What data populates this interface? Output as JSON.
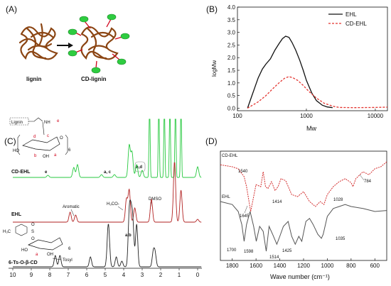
{
  "panels": {
    "a": {
      "label": "(A)",
      "left_caption": "lignin",
      "right_caption": "CD-lignin"
    },
    "b": {
      "label": "(B)"
    },
    "c": {
      "label": "(C)"
    },
    "d": {
      "label": "(D)"
    }
  },
  "colors": {
    "ehl": "#111111",
    "cd_ehl": "#e3342f",
    "nmr_cd": "#27c93f",
    "nmr_ehl": "#b22222",
    "nmr_ts": "#222222",
    "ftir_cd": "#d32f2f",
    "ftir_ehl": "#555555",
    "lignin": "#8b4513",
    "cd": "#2ecc40"
  },
  "chart_data": [
    {
      "type": "line",
      "panel": "B",
      "xlabel": "Mw",
      "ylabel": "logMw",
      "xscale": "log",
      "xlim": [
        100,
        15000
      ],
      "ylim": [
        -0.1,
        4.0
      ],
      "x_ticks": [
        "100",
        "1000",
        "10000"
      ],
      "y_ticks": [
        "0.0",
        "0.5",
        "1.0",
        "1.5",
        "2.0",
        "2.5",
        "3.0",
        "3.5",
        "4.0"
      ],
      "legend_position": "top-right",
      "series": [
        {
          "name": "EHL",
          "x": [
            140,
            160,
            180,
            200,
            230,
            260,
            300,
            350,
            400,
            450,
            500,
            560,
            620,
            700,
            800,
            900,
            1000,
            1200,
            1400,
            1700,
            2000,
            2400
          ],
          "y": [
            0.0,
            0.45,
            0.85,
            1.2,
            1.55,
            1.75,
            1.95,
            2.3,
            2.55,
            2.75,
            2.85,
            2.8,
            2.6,
            2.3,
            1.9,
            1.5,
            1.1,
            0.6,
            0.3,
            0.12,
            0.05,
            0.02
          ]
        },
        {
          "name": "CD-EHL",
          "x": [
            140,
            200,
            260,
            320,
            400,
            480,
            560,
            640,
            750,
            900,
            1100,
            1400,
            1800,
            2400,
            3000,
            5000,
            10000,
            15000
          ],
          "y": [
            0.0,
            0.25,
            0.5,
            0.75,
            1.0,
            1.18,
            1.25,
            1.2,
            1.1,
            0.9,
            0.65,
            0.4,
            0.2,
            0.08,
            0.03,
            0.02,
            0.03,
            0.04
          ]
        }
      ]
    },
    {
      "type": "line",
      "panel": "C",
      "x_reversed": true,
      "xlim": [
        10,
        0
      ],
      "x_ticks": [
        "10",
        "9",
        "8",
        "7",
        "6",
        "5",
        "4",
        "3",
        "2",
        "1",
        "0"
      ],
      "series": [
        {
          "name": "CD-EHL",
          "baseline": 0,
          "peaks": [
            [
              8.1,
              3
            ],
            [
              6.7,
              14
            ],
            [
              6.5,
              18
            ],
            [
              5.2,
              4
            ],
            [
              4.5,
              4
            ],
            [
              3.7,
              45
            ],
            [
              3.55,
              35
            ],
            [
              3.3,
              18
            ],
            [
              3.0,
              10
            ],
            [
              2.6,
              170
            ],
            [
              2.1,
              170
            ],
            [
              1.8,
              170
            ],
            [
              1.5,
              170
            ],
            [
              1.2,
              170
            ],
            [
              0.9,
              170
            ],
            [
              0.0,
              15
            ]
          ]
        },
        {
          "name": "EHL",
          "baseline": 0,
          "peaks": [
            [
              6.9,
              14
            ],
            [
              6.6,
              10
            ],
            [
              3.85,
              32
            ],
            [
              3.7,
              45
            ],
            [
              3.4,
              20
            ],
            [
              2.5,
              32
            ],
            [
              1.25,
              85
            ],
            [
              0.9,
              45
            ],
            [
              0.0,
              4
            ]
          ]
        },
        {
          "name": "6-Ts-O-β-CD",
          "baseline": 0,
          "peaks": [
            [
              7.7,
              16
            ],
            [
              7.45,
              16
            ],
            [
              5.8,
              14
            ],
            [
              4.85,
              38
            ],
            [
              4.8,
              28
            ],
            [
              4.4,
              14
            ],
            [
              4.1,
              8
            ],
            [
              3.7,
              70
            ],
            [
              3.6,
              60
            ],
            [
              3.5,
              55
            ],
            [
              3.3,
              60
            ],
            [
              2.4,
              20
            ],
            [
              2.3,
              18
            ]
          ]
        }
      ],
      "spectrum_labels": [
        "CD-EHL",
        "EHL",
        "6-Ts-O-β-CD"
      ],
      "annotations": {
        "cd": [
          "e",
          "a, c",
          "b,d"
        ],
        "ehl": [
          "Aromatic",
          "H₃CO-",
          "DMSO"
        ],
        "ts": [
          "Tosyl",
          "a,b"
        ]
      },
      "structure": {
        "lignin": "Lignin",
        "nh": "NH",
        "e": "e",
        "d": "d",
        "c": "c",
        "b": "b",
        "a": "a",
        "n": "6",
        "ho1": "HO",
        "oh": "OH",
        "o": "O"
      },
      "ts_structure": {
        "me": "H₃C",
        "s": "S",
        "o1": "O",
        "o2": "O",
        "ho": "HO",
        "oh": "OH",
        "n": "6",
        "a": "a"
      }
    },
    {
      "type": "line",
      "panel": "D",
      "xlabel": "Wave number (cm⁻¹)",
      "x_reversed": true,
      "xlim": [
        1900,
        500
      ],
      "x_ticks": [
        "1800",
        "1600",
        "1400",
        "1200",
        "1000",
        "800",
        "600"
      ],
      "series": [
        {
          "name": "CD-EHL",
          "x": [
            1900,
            1800,
            1750,
            1700,
            1680,
            1645,
            1620,
            1600,
            1560,
            1540,
            1520,
            1500,
            1470,
            1440,
            1414,
            1390,
            1350,
            1300,
            1250,
            1200,
            1150,
            1100,
            1060,
            1028,
            1000,
            950,
            900,
            850,
            800,
            784,
            760,
            700,
            650,
            600,
            550,
            500
          ],
          "y": [
            0.92,
            0.9,
            0.88,
            0.8,
            0.7,
            0.45,
            0.6,
            0.72,
            0.7,
            0.85,
            0.7,
            0.68,
            0.75,
            0.66,
            0.7,
            0.78,
            0.76,
            0.62,
            0.6,
            0.65,
            0.55,
            0.5,
            0.55,
            0.52,
            0.62,
            0.7,
            0.75,
            0.78,
            0.74,
            0.7,
            0.78,
            0.85,
            0.82,
            0.88,
            0.9,
            0.95
          ]
        },
        {
          "name": "EHL",
          "x": [
            1900,
            1800,
            1750,
            1720,
            1700,
            1680,
            1650,
            1620,
            1598,
            1570,
            1540,
            1514,
            1490,
            1460,
            1425,
            1400,
            1370,
            1330,
            1300,
            1270,
            1240,
            1215,
            1180,
            1150,
            1120,
            1080,
            1050,
            1035,
            1000,
            950,
            900,
            850,
            800,
            700,
            600,
            500
          ],
          "y": [
            0.55,
            0.52,
            0.45,
            0.32,
            0.15,
            0.32,
            0.45,
            0.3,
            0.15,
            0.3,
            0.25,
            0.05,
            0.3,
            0.22,
            0.12,
            0.2,
            0.3,
            0.35,
            0.2,
            0.12,
            0.2,
            0.15,
            0.35,
            0.38,
            0.32,
            0.22,
            0.18,
            0.22,
            0.4,
            0.48,
            0.5,
            0.52,
            0.5,
            0.48,
            0.45,
            0.46
          ]
        }
      ],
      "labels": {
        "cd": [
          "1540",
          "1645",
          "1414",
          "1028",
          "784"
        ],
        "ehl": [
          "1700",
          "1598",
          "1514",
          "1425",
          "1035"
        ]
      }
    }
  ]
}
